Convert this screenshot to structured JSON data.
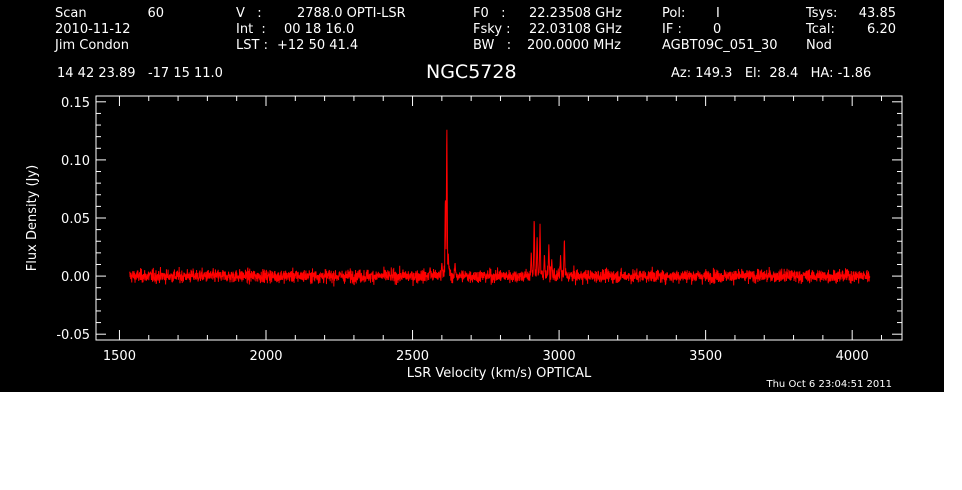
{
  "header": {
    "col1": [
      "Scan",
      "2010-11-12",
      "Jim Condon"
    ],
    "col1_values": [
      "60"
    ],
    "col2_labels": [
      "V   :",
      "Int  :",
      "LST :"
    ],
    "col2_values": [
      "2788.0 OPTI-LSR",
      "00 18 16.0",
      "+12 50 41.4"
    ],
    "col3_labels": [
      "F0   :",
      "Fsky :",
      "BW   :"
    ],
    "col3_values": [
      "22.23508 GHz",
      "22.03108 GHz",
      "200.0000 MHz"
    ],
    "col4_labels": [
      "Pol:",
      "IF :",
      "AGBT09C_051_30"
    ],
    "col4_values": [
      "I",
      "0",
      ""
    ],
    "col5_labels": [
      "Tsys:",
      "Tcal:",
      "Nod"
    ],
    "col5_values": [
      "43.85",
      "6.20",
      ""
    ],
    "coords": "14 42 23.89   -17 15 11.0",
    "object": "NGC5728",
    "pointing": "Az: 149.3   El:  28.4   HA: -1.86"
  },
  "timestamp": "Thu Oct  6 23:04:51 2011",
  "colors": {
    "background": "#000000",
    "axes": "#ffffff",
    "series": "#ff0000"
  },
  "chart_data": {
    "type": "line",
    "xlabel": "LSR Velocity (km/s) OPTICAL",
    "ylabel": "Flux Density (Jy)",
    "xlim": [
      1420,
      4170
    ],
    "ylim": [
      -0.055,
      0.155
    ],
    "xticks": [
      1500,
      2000,
      2500,
      3000,
      3500,
      4000
    ],
    "yticks": [
      -0.05,
      0.0,
      0.05,
      0.1,
      0.15
    ],
    "ytick_labels": [
      "-0.05",
      "0.00",
      "0.05",
      "0.10",
      "0.15"
    ],
    "grid": false,
    "x_range": [
      1535,
      4060
    ],
    "noise_rms": 0.004,
    "features": [
      {
        "x": 2560,
        "y": 0.008
      },
      {
        "x": 2600,
        "y": 0.012
      },
      {
        "x": 2612,
        "y": 0.065
      },
      {
        "x": 2617,
        "y": 0.134
      },
      {
        "x": 2622,
        "y": 0.02
      },
      {
        "x": 2645,
        "y": 0.012
      },
      {
        "x": 2905,
        "y": 0.02
      },
      {
        "x": 2915,
        "y": 0.052
      },
      {
        "x": 2925,
        "y": 0.035
      },
      {
        "x": 2935,
        "y": 0.045
      },
      {
        "x": 2950,
        "y": 0.02
      },
      {
        "x": 2965,
        "y": 0.028
      },
      {
        "x": 2975,
        "y": 0.015
      },
      {
        "x": 3005,
        "y": 0.018
      },
      {
        "x": 3018,
        "y": 0.034
      }
    ]
  }
}
